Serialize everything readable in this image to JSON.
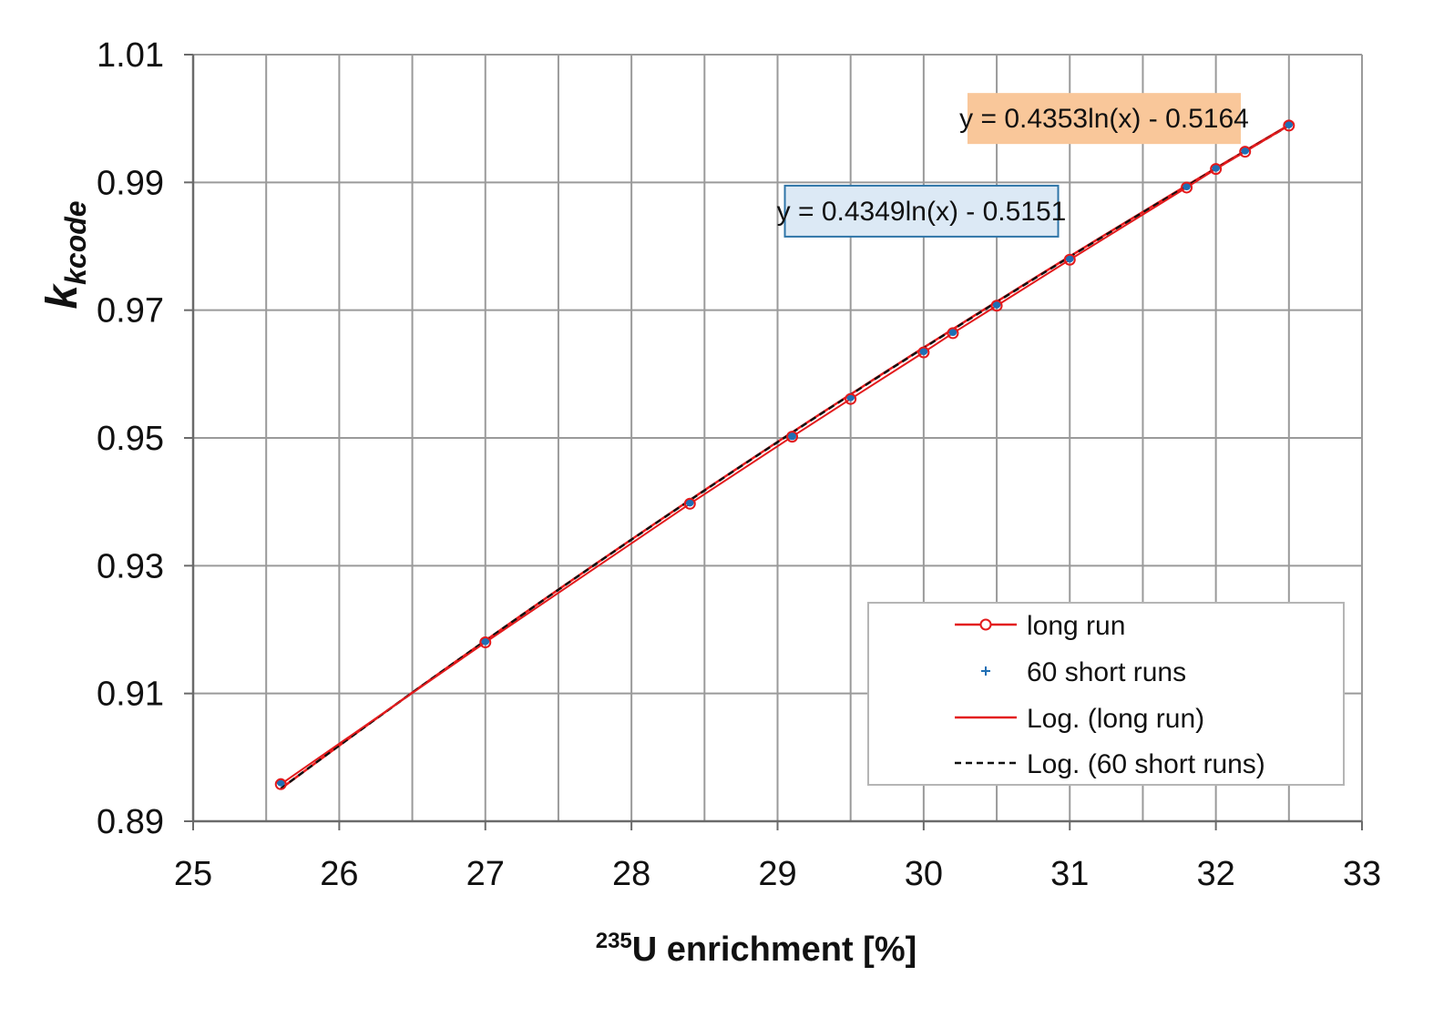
{
  "chart_data": {
    "type": "line",
    "x_axis": {
      "label_sup": "235",
      "label_main": "U enrichment [%]",
      "min": 25,
      "max": 33,
      "major_ticks": [
        25,
        26,
        27,
        28,
        29,
        30,
        31,
        32,
        33
      ],
      "minor_step": 0.5
    },
    "y_axis": {
      "label_main": "k",
      "label_sub": "kcode",
      "min": 0.89,
      "max": 1.01,
      "major_ticks": [
        0.89,
        0.91,
        0.93,
        0.95,
        0.97,
        0.99,
        1.01
      ],
      "tick_labels": [
        "0.89",
        "0.91",
        "0.93",
        "0.95",
        "0.97",
        "0.99",
        "1.01"
      ]
    },
    "grid": true,
    "legend_position": "bottom-right",
    "x": [
      25.6,
      27.0,
      28.4,
      29.1,
      29.5,
      30.0,
      30.2,
      30.5,
      31.0,
      31.8,
      32.0,
      32.2,
      32.5
    ],
    "series": [
      {
        "name": "long run",
        "kind": "line-marker",
        "marker": "circle",
        "color": "#e31a1c",
        "y": [
          0.8958,
          0.918,
          0.9397,
          0.9502,
          0.9561,
          0.9634,
          0.9664,
          0.9707,
          0.9779,
          0.9892,
          0.9921,
          0.9948,
          0.9989
        ]
      },
      {
        "name": "60 short runs",
        "kind": "marker",
        "marker": "plus",
        "color": "#1f6fb4",
        "y": [
          0.8961,
          0.9182,
          0.9399,
          0.9503,
          0.9564,
          0.9636,
          0.9666,
          0.9709,
          0.9781,
          0.9894,
          0.9923,
          0.995,
          0.9991
        ]
      },
      {
        "name": "Log. (long run)",
        "kind": "trendline",
        "style": "solid",
        "color": "#e31a1c",
        "a": 0.4353,
        "b": -0.5164
      },
      {
        "name": "Log. (60 short runs)",
        "kind": "trendline",
        "style": "dashed",
        "color": "#111111",
        "a": 0.4349,
        "b": -0.5151
      }
    ],
    "annotations": [
      {
        "text": "y = 0.4353ln(x) - 0.5164",
        "background": "#f9c79a",
        "border": "none",
        "anchor_x": 30.3,
        "anchor_y": 1.0
      },
      {
        "text": "y = 0.4349ln(x) - 0.5151",
        "background": "#dce9f5",
        "border": "#2f75a8",
        "anchor_x": 29.05,
        "anchor_y": 0.9855
      }
    ]
  }
}
